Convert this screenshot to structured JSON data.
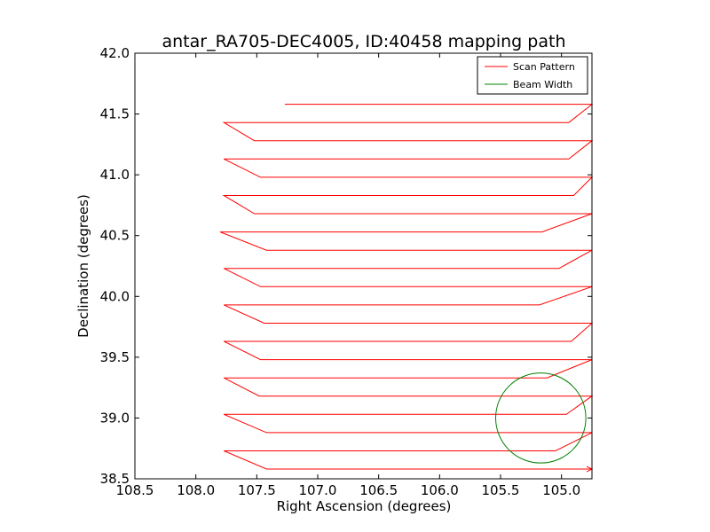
{
  "chart_data": {
    "type": "line",
    "title": "antar_RA705-DEC4005, ID:40458 mapping path",
    "xlabel": "Right Ascension (degrees)",
    "ylabel": "Declination (degrees)",
    "xlim": [
      108.5,
      104.75
    ],
    "ylim": [
      38.5,
      42.0
    ],
    "x_ticks": [
      "108.5",
      "108.0",
      "107.5",
      "107.0",
      "106.5",
      "106.0",
      "105.5",
      "105.0"
    ],
    "x_tick_values": [
      108.5,
      108.0,
      107.5,
      107.0,
      106.5,
      106.0,
      105.5,
      105.0
    ],
    "y_ticks": [
      "38.5",
      "39.0",
      "39.5",
      "40.0",
      "40.5",
      "41.0",
      "41.5",
      "42.0"
    ],
    "y_tick_values": [
      38.5,
      39.0,
      39.5,
      40.0,
      40.5,
      41.0,
      41.5,
      42.0
    ],
    "grid": false,
    "legend_position": "top-right",
    "series": [
      {
        "name": "Scan Pattern",
        "color": "#ff0000",
        "kind": "line",
        "x": [
          107.27,
          104.75,
          104.94,
          107.77,
          107.52,
          104.75,
          104.94,
          107.77,
          107.47,
          104.75,
          104.9,
          107.77,
          107.52,
          104.75,
          105.16,
          107.8,
          107.42,
          104.75,
          105.02,
          107.77,
          107.47,
          104.75,
          105.18,
          107.77,
          107.44,
          104.75,
          104.92,
          107.77,
          107.47,
          104.75,
          105.12,
          107.77,
          107.48,
          104.75,
          104.96,
          107.77,
          107.42,
          104.75,
          105.05,
          107.77,
          107.42,
          104.75
        ],
        "y": [
          41.58,
          41.58,
          41.43,
          41.43,
          41.28,
          41.28,
          41.13,
          41.13,
          40.98,
          40.98,
          40.83,
          40.83,
          40.68,
          40.68,
          40.53,
          40.53,
          40.38,
          40.38,
          40.23,
          40.23,
          40.08,
          40.08,
          39.93,
          39.93,
          39.78,
          39.78,
          39.63,
          39.63,
          39.48,
          39.48,
          39.33,
          39.33,
          39.18,
          39.18,
          39.03,
          39.03,
          38.88,
          38.88,
          38.73,
          38.73,
          38.58,
          38.58
        ]
      },
      {
        "name": "Beam Width",
        "color": "#008000",
        "kind": "circle",
        "center": [
          105.17,
          39.0
        ],
        "radius": 0.37
      }
    ]
  }
}
